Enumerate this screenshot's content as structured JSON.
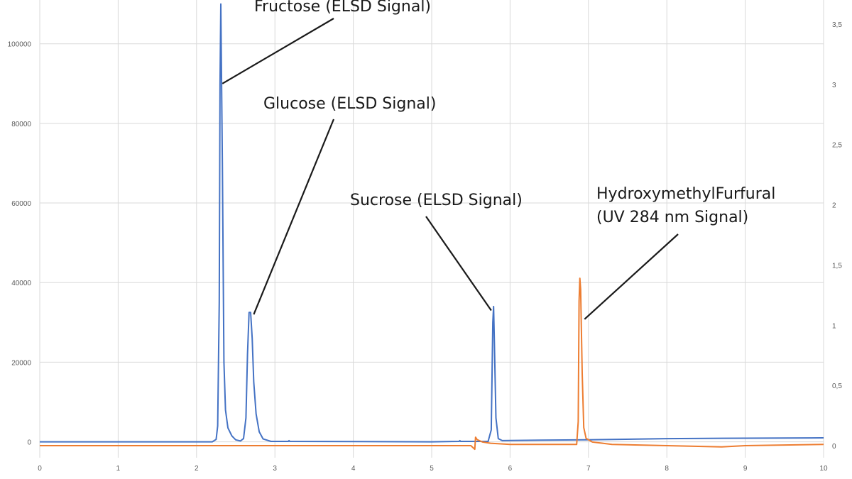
{
  "chart_data": {
    "type": "line",
    "title": "",
    "xlabel": "",
    "ylabel": "",
    "y2label": "",
    "grid": true,
    "xlim": [
      0,
      10
    ],
    "ylim_left": [
      -4000,
      111000
    ],
    "ylim_right": [
      -0.1,
      3.7
    ],
    "x_ticks": [
      "0",
      "1",
      "2",
      "3",
      "4",
      "5",
      "6",
      "7",
      "8",
      "9",
      "10"
    ],
    "y_left_ticks": [
      "0",
      "20000",
      "40000",
      "60000",
      "80000",
      "100000"
    ],
    "y_right_ticks": [
      "0",
      "0,5",
      "1",
      "1,5",
      "2",
      "2,5",
      "3",
      "3,5"
    ],
    "series": [
      {
        "color": "#4472c4",
        "axis": "left",
        "points": [
          [
            0,
            0
          ],
          [
            1,
            0
          ],
          [
            2.2,
            0
          ],
          [
            2.25,
            600
          ],
          [
            2.27,
            4000
          ],
          [
            2.29,
            35000
          ],
          [
            2.3,
            90000
          ],
          [
            2.31,
            110000
          ],
          [
            2.33,
            70000
          ],
          [
            2.35,
            20000
          ],
          [
            2.37,
            8000
          ],
          [
            2.4,
            3500
          ],
          [
            2.45,
            1500
          ],
          [
            2.5,
            500
          ],
          [
            2.56,
            200
          ],
          [
            2.6,
            800
          ],
          [
            2.63,
            6000
          ],
          [
            2.65,
            22000
          ],
          [
            2.67,
            32500
          ],
          [
            2.69,
            32500
          ],
          [
            2.71,
            26000
          ],
          [
            2.73,
            15000
          ],
          [
            2.76,
            7000
          ],
          [
            2.8,
            2500
          ],
          [
            2.85,
            700
          ],
          [
            2.95,
            100
          ],
          [
            3.17,
            100
          ],
          [
            3.18,
            300
          ],
          [
            3.19,
            100
          ],
          [
            5.0,
            0
          ],
          [
            5.35,
            100
          ],
          [
            5.36,
            300
          ],
          [
            5.37,
            100
          ],
          [
            5.72,
            100
          ],
          [
            5.76,
            3000
          ],
          [
            5.78,
            30000
          ],
          [
            5.79,
            34000
          ],
          [
            5.8,
            25000
          ],
          [
            5.82,
            6000
          ],
          [
            5.85,
            800
          ],
          [
            5.9,
            300
          ],
          [
            6.4,
            400
          ],
          [
            7.0,
            500
          ],
          [
            8.0,
            800
          ],
          [
            9.0,
            900
          ],
          [
            10,
            1000
          ]
        ]
      },
      {
        "color": "#ed7d31",
        "axis": "right",
        "points": [
          [
            0,
            0.0
          ],
          [
            5.5,
            0.0
          ],
          [
            5.55,
            -0.03
          ],
          [
            5.56,
            0.07
          ],
          [
            5.58,
            0.05
          ],
          [
            5.65,
            0.03
          ],
          [
            5.75,
            0.02
          ],
          [
            6.0,
            0.01
          ],
          [
            6.85,
            0.01
          ],
          [
            6.87,
            0.2
          ],
          [
            6.88,
            1.2
          ],
          [
            6.89,
            1.39
          ],
          [
            6.9,
            1.3
          ],
          [
            6.92,
            0.6
          ],
          [
            6.94,
            0.15
          ],
          [
            6.97,
            0.06
          ],
          [
            7.05,
            0.03
          ],
          [
            7.3,
            0.01
          ],
          [
            8.0,
            0.0
          ],
          [
            8.7,
            -0.01
          ],
          [
            9.0,
            0.0
          ],
          [
            10,
            0.01
          ]
        ]
      }
    ],
    "annotations": [
      {
        "text_lines": [
          "Fructose (ELSD Signal)"
        ],
        "pointer_series": 0,
        "pointer_x": 2.33,
        "pointer_y": 90000
      },
      {
        "text_lines": [
          "Glucose (ELSD Signal)"
        ],
        "pointer_series": 0,
        "pointer_x": 2.73,
        "pointer_y": 32000
      },
      {
        "text_lines": [
          "Sucrose (ELSD Signal)"
        ],
        "pointer_series": 0,
        "pointer_x": 5.76,
        "pointer_y": 33000
      },
      {
        "text_lines": [
          "HydroxymethylFurfural",
          "(UV 284 nm Signal)"
        ],
        "pointer_series": 1,
        "pointer_x": 6.95,
        "pointer_y": 1.05
      }
    ]
  }
}
